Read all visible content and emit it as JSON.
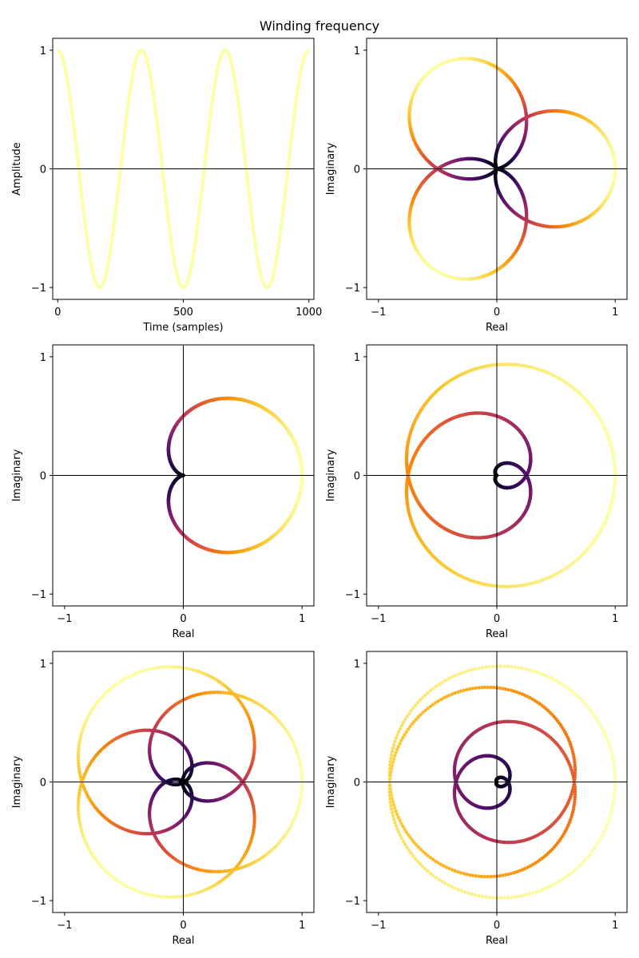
{
  "figure": {
    "title": "Winding frequency"
  },
  "chart_data": [
    {
      "type": "line",
      "description_key": "signal",
      "signal": {
        "kind": "cosine",
        "cycles": 3,
        "samples": 1000
      },
      "xlabel": "Time (samples)",
      "ylabel": "Amplitude",
      "xlim": [
        -20,
        1020
      ],
      "ylim": [
        -1.1,
        1.1
      ],
      "xticks": [
        0,
        500,
        1000
      ],
      "yticks": [
        -1,
        0,
        1
      ],
      "xtick_labels": [
        "0",
        "500",
        "1000"
      ],
      "ytick_labels": [
        "−1",
        "0",
        "1"
      ],
      "color": "#fcffa4"
    },
    {
      "type": "scatter",
      "winding": {
        "signal_cycles": 3,
        "winding_cycles": 2,
        "samples": 1000
      },
      "xlabel": "Real",
      "ylabel": "Imaginary",
      "xlim": [
        -1.1,
        1.1
      ],
      "ylim": [
        -1.1,
        1.1
      ],
      "xticks": [
        -1,
        0,
        1
      ],
      "yticks": [
        -1,
        0,
        1
      ],
      "xtick_labels": [
        "−1",
        "0",
        "1"
      ],
      "ytick_labels": [
        "−1",
        "0",
        "1"
      ],
      "colormap": "inferno"
    },
    {
      "type": "scatter",
      "winding": {
        "signal_cycles": 3,
        "winding_cycles": 3,
        "samples": 1000
      },
      "xlabel": "Real",
      "ylabel": "Imaginary",
      "xlim": [
        -1.1,
        1.1
      ],
      "ylim": [
        -1.1,
        1.1
      ],
      "xticks": [
        -1,
        0,
        1
      ],
      "yticks": [
        -1,
        0,
        1
      ],
      "xtick_labels": [
        "−1",
        "0",
        "1"
      ],
      "ytick_labels": [
        "−1",
        "0",
        "1"
      ],
      "colormap": "inferno"
    },
    {
      "type": "scatter",
      "winding": {
        "signal_cycles": 3,
        "winding_cycles": 9,
        "samples": 1000
      },
      "xlabel": "Real",
      "ylabel": "Imaginary",
      "xlim": [
        -1.1,
        1.1
      ],
      "ylim": [
        -1.1,
        1.1
      ],
      "xticks": [
        -1,
        0,
        1
      ],
      "yticks": [
        -1,
        0,
        1
      ],
      "xtick_labels": [
        "−1",
        "0",
        "1"
      ],
      "ytick_labels": [
        "−1",
        "0",
        "1"
      ],
      "colormap": "inferno"
    },
    {
      "type": "scatter",
      "winding": {
        "signal_cycles": 3,
        "winding_cycles": 4,
        "samples": 1000
      },
      "xlabel": "Real",
      "ylabel": "Imaginary",
      "xlim": [
        -1.1,
        1.1
      ],
      "ylim": [
        -1.1,
        1.1
      ],
      "xticks": [
        -1,
        0,
        1
      ],
      "yticks": [
        -1,
        0,
        1
      ],
      "xtick_labels": [
        "−1",
        "0",
        "1"
      ],
      "ytick_labels": [
        "−1",
        "0",
        "1"
      ],
      "colormap": "inferno"
    },
    {
      "type": "scatter",
      "winding": {
        "signal_cycles": 3,
        "winding_cycles": 15,
        "samples": 1000
      },
      "xlabel": "Real",
      "ylabel": "Imaginary",
      "xlim": [
        -1.1,
        1.1
      ],
      "ylim": [
        -1.1,
        1.1
      ],
      "xticks": [
        -1,
        0,
        1
      ],
      "yticks": [
        -1,
        0,
        1
      ],
      "xtick_labels": [
        "−1",
        "0",
        "1"
      ],
      "ytick_labels": [
        "−1",
        "0",
        "1"
      ],
      "colormap": "inferno"
    }
  ]
}
